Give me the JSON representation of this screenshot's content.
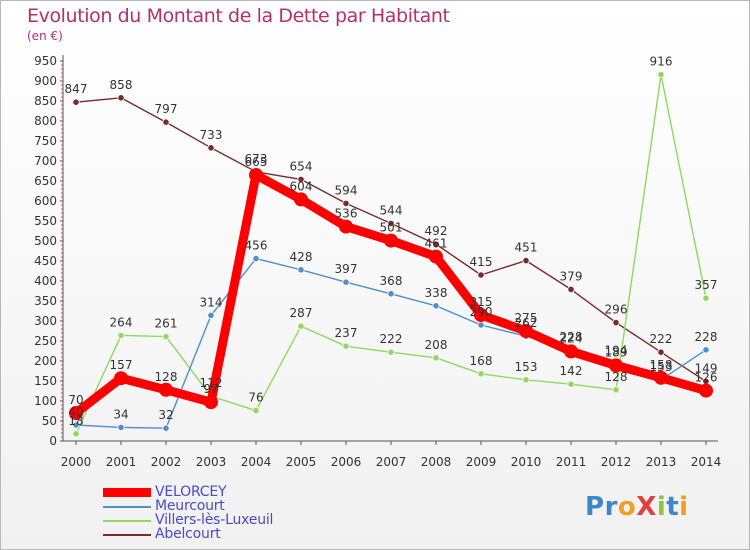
{
  "title": "Evolution du Montant de la Dette par Habitant",
  "unit_label": "(en €)",
  "logo": {
    "text": "ProXiti",
    "letters": [
      {
        "ch": "P",
        "color": "#3f86c9"
      },
      {
        "ch": "r",
        "color": "#3f86c9"
      },
      {
        "ch": "o",
        "color": "#f0a020"
      },
      {
        "ch": "X",
        "color": "#e83b3b"
      },
      {
        "ch": "i",
        "color": "#8cc63f"
      },
      {
        "ch": "t",
        "color": "#3f86c9"
      },
      {
        "ch": "i",
        "color": "#f0a020"
      }
    ]
  },
  "chart_data": {
    "type": "line",
    "x": [
      "2000",
      "2001",
      "2002",
      "2003",
      "2004",
      "2005",
      "2006",
      "2007",
      "2008",
      "2009",
      "2010",
      "2011",
      "2012",
      "2013",
      "2014"
    ],
    "ylim": [
      0,
      950
    ],
    "yticks": [
      0,
      50,
      100,
      150,
      200,
      250,
      300,
      350,
      400,
      450,
      500,
      550,
      600,
      650,
      700,
      750,
      800,
      850,
      900,
      950
    ],
    "grid": false,
    "legend_position": "bottom-left",
    "series": [
      {
        "name": "VELORCEY",
        "color": "#ff0000",
        "emphasis": true,
        "values": [
          70,
          157,
          128,
          97,
          665,
          604,
          536,
          501,
          461,
          315,
          275,
          224,
          189,
          158,
          126
        ]
      },
      {
        "name": "Meurcourt",
        "color": "#4f8fce",
        "values": [
          40,
          34,
          32,
          314,
          456,
          428,
          397,
          368,
          338,
          290,
          262,
          228,
          194,
          153,
          228
        ]
      },
      {
        "name": "Villers-lès-Luxeuil",
        "color": "#90d860",
        "values": [
          18,
          264,
          261,
          112,
          76,
          287,
          237,
          222,
          208,
          168,
          153,
          142,
          128,
          916,
          357
        ]
      },
      {
        "name": "Abelcourt",
        "color": "#7a2a2a",
        "values": [
          847,
          858,
          797,
          733,
          673,
          654,
          594,
          544,
          492,
          415,
          451,
          379,
          296,
          222,
          149
        ]
      }
    ],
    "point_labels": [
      {
        "series": 0,
        "labels": [
          "70",
          "157",
          "128",
          "97",
          "665",
          "604",
          "536",
          "501",
          "461",
          "315",
          "275",
          "224",
          "189",
          "158",
          "126"
        ]
      },
      {
        "series": 1,
        "labels": [
          "40",
          "34",
          "32",
          "314",
          "456",
          "428",
          "397",
          "368",
          "338",
          "290",
          "262",
          "228",
          "194",
          "153",
          "228"
        ]
      },
      {
        "series": 2,
        "labels": [
          "18",
          "264",
          "261",
          "112",
          "76",
          "287",
          "237",
          "222",
          "208",
          "168",
          "153",
          "142",
          "128",
          "916",
          "357"
        ]
      },
      {
        "series": 3,
        "labels": [
          "847",
          "858",
          "797",
          "733",
          "673",
          "654",
          "594",
          "544",
          "492",
          "415",
          "451",
          "379",
          "296",
          "222",
          "149"
        ]
      }
    ]
  }
}
